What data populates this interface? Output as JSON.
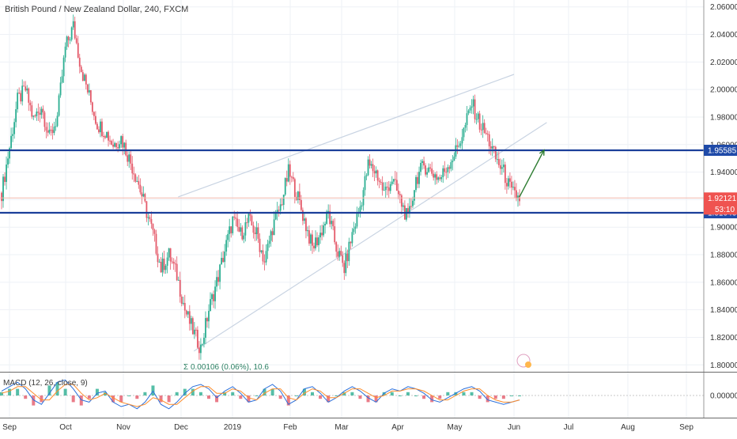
{
  "header": {
    "title": "British Pound / New Zealand Dollar, 240, FXCM"
  },
  "macd": {
    "title": "MACD (12, 26, close, 9)",
    "label": "0.00000"
  },
  "annotation": {
    "text": "0.00106 (0.06%), 10.6"
  },
  "price_labels": {
    "current": "1.92121",
    "countdown": "53:10"
  },
  "colors": {
    "background": "#ffffff",
    "grid": "#eef1f6",
    "up": "#2bae91",
    "down": "#e45a6a",
    "level_line": "#1b3f9a",
    "trend_line": "#c8d3e2",
    "arrow": "#2e7d32",
    "price_line": "#f2b8ad",
    "badge_blue": "#1f4aa8",
    "badge_red": "#ef5350",
    "macd_line": "#2a6fdb",
    "signal_line": "#ff8c2a"
  },
  "chart_data": {
    "type": "line",
    "title": "British Pound / New Zealand Dollar, 240, FXCM",
    "xlabel": "",
    "ylabel": "",
    "x_ticks": [
      "Sep",
      "Oct",
      "Nov",
      "Dec",
      "2019",
      "Feb",
      "Mar",
      "Apr",
      "May",
      "Jun",
      "Jul",
      "Aug",
      "Sep"
    ],
    "y_ticks": [
      "1.80000",
      "1.82000",
      "1.84000",
      "1.86000",
      "1.88000",
      "1.90000",
      "1.92000",
      "1.94000",
      "1.96000",
      "1.98000",
      "2.00000",
      "2.02000",
      "2.04000",
      "2.06000"
    ],
    "ylim": [
      1.795,
      2.065
    ],
    "grid": true,
    "series": [
      {
        "values": [
          1.925,
          1.958,
          1.992,
          2.0,
          1.978,
          1.988,
          1.965,
          1.98,
          2.03,
          2.046,
          2.015,
          1.995,
          1.975,
          1.97,
          1.96,
          1.965,
          1.95,
          1.935,
          1.915,
          1.895,
          1.87,
          1.88,
          1.865,
          1.84,
          1.825,
          1.812,
          1.84,
          1.86,
          1.883,
          1.905,
          1.895,
          1.905,
          1.895,
          1.875,
          1.9,
          1.915,
          1.94,
          1.925,
          1.905,
          1.885,
          1.895,
          1.91,
          1.885,
          1.87,
          1.895,
          1.915,
          1.945,
          1.94,
          1.925,
          1.935,
          1.92,
          1.905,
          1.935,
          1.945,
          1.94,
          1.935,
          1.945,
          1.955,
          1.97,
          1.99,
          1.975,
          1.965,
          1.95,
          1.94,
          1.925,
          1.921
        ]
      }
    ],
    "horizontal_levels": [
      {
        "label": "1.95585",
        "value": 1.95585
      },
      {
        "label": "1.91046",
        "value": 1.91046
      }
    ],
    "current_price": 1.92121,
    "trendlines": [
      {
        "from": [
          "Dec",
          1.81
        ],
        "to": [
          "Jun",
          1.955
        ]
      },
      {
        "from": [
          "Nov/Dec",
          1.922
        ],
        "to": [
          "Jun",
          2.01
        ]
      }
    ],
    "arrow": {
      "from": [
        "Jun",
        1.922
      ],
      "to": [
        "Jun/Jul",
        1.955
      ]
    },
    "macd": {
      "ylim": [
        -0.01,
        0.01
      ],
      "tick": "0.00000",
      "macd_line": [
        0.002,
        0.004,
        0.006,
        0.003,
        -0.002,
        -0.004,
        0.001,
        0.006,
        0.007,
        0.003,
        -0.002,
        -0.003,
        0.001,
        0.002,
        -0.003,
        -0.005,
        -0.004,
        -0.006,
        -0.003,
        0.002,
        -0.004,
        -0.006,
        -0.003,
        0.001,
        0.004,
        0.005,
        0.003,
        -0.001,
        0.002,
        0.004,
        0.001,
        -0.003,
        -0.002,
        0.003,
        0.005,
        0.002,
        -0.004,
        -0.002,
        0.003,
        0.004,
        0.001,
        -0.003,
        -0.001,
        0.002,
        0.004,
        0.002,
        -0.001,
        -0.003,
        0.001,
        0.003,
        0.002,
        0.004,
        0.003,
        0.001,
        -0.002,
        -0.003,
        -0.001,
        0.001,
        0.003,
        0.004,
        0.002,
        -0.002,
        -0.003,
        -0.004,
        -0.003,
        -0.002
      ],
      "signal_line": [
        0.001,
        0.002,
        0.004,
        0.004,
        0.001,
        -0.002,
        -0.002,
        0.002,
        0.005,
        0.005,
        0.001,
        -0.002,
        -0.001,
        0.001,
        -0.001,
        -0.003,
        -0.004,
        -0.005,
        -0.004,
        -0.001,
        -0.002,
        -0.004,
        -0.004,
        -0.001,
        0.002,
        0.004,
        0.004,
        0.001,
        0.001,
        0.003,
        0.002,
        -0.001,
        -0.002,
        0.001,
        0.003,
        0.003,
        -0.001,
        -0.002,
        0.001,
        0.003,
        0.002,
        -0.001,
        -0.001,
        0.001,
        0.003,
        0.003,
        0.001,
        -0.001,
        0.0,
        0.002,
        0.002,
        0.003,
        0.003,
        0.002,
        0.0,
        -0.002,
        -0.002,
        0.0,
        0.002,
        0.003,
        0.003,
        0.0,
        -0.002,
        -0.003,
        -0.003,
        -0.002
      ]
    }
  }
}
